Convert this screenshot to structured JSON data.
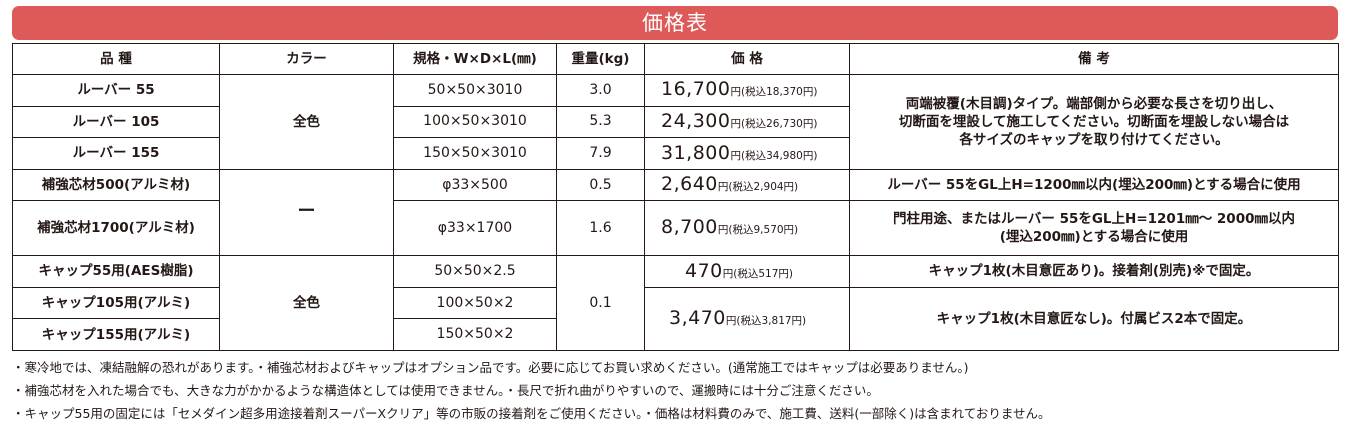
{
  "title": "価格表",
  "headers": {
    "name": "品 種",
    "color": "カラー",
    "spec": "規格・W×D×L(㎜)",
    "weight": "重量(kg)",
    "price": "価 格",
    "remarks": "備 考"
  },
  "price_unit": "円",
  "rows": [
    {
      "name": "ルーバー 55",
      "spec": "50×50×3010",
      "weight": "3.0",
      "price": "16,700",
      "tax": "(税込18,370円)"
    },
    {
      "name": "ルーバー 105",
      "spec": "100×50×3010",
      "weight": "5.3",
      "price": "24,300",
      "tax": "(税込26,730円)"
    },
    {
      "name": "ルーバー 155",
      "spec": "150×50×3010",
      "weight": "7.9",
      "price": "31,800",
      "tax": "(税込34,980円)"
    },
    {
      "name": "補強芯材500(アルミ材)",
      "spec": "φ33×500",
      "weight": "0.5",
      "price": "2,640",
      "tax": "(税込2,904円)"
    },
    {
      "name": "補強芯材1700(アルミ材)",
      "spec": "φ33×1700",
      "weight": "1.6",
      "price": "8,700",
      "tax": "(税込9,570円)"
    },
    {
      "name": "キャップ55用(AES樹脂)",
      "spec": "50×50×2.5",
      "price": "470",
      "tax": "(税込517円)"
    },
    {
      "name": "キャップ105用(アルミ)",
      "spec": "100×50×2",
      "price": "3,470",
      "tax": "(税込3,817円)"
    },
    {
      "name": "キャップ155用(アルミ)",
      "spec": "150×50×2"
    }
  ],
  "colors": {
    "group1": "全色",
    "group2": "ー",
    "group3": "全色"
  },
  "cap_weight": "0.1",
  "remarks": {
    "louver": [
      "両端被覆(木目調)タイプ。端部側から必要な長さを切り出し、",
      "切断面を埋設して施工してください。切断面を埋設しない場合は",
      "各サイズのキャップを取り付けてください。"
    ],
    "core500": "ルーバー 55をGL上H=1200㎜以内(埋込200㎜)とする場合に使用",
    "core1700": [
      "門柱用途、またはルーバー 55をGL上H=1201㎜～ 2000㎜以内",
      "(埋込200㎜)とする場合に使用"
    ],
    "cap55": "キャップ1枚(木目意匠あり)。接着剤(別売)※で固定。",
    "cap105_155": "キャップ1枚(木目意匠なし)。付属ビス2本で固定。"
  },
  "notes": [
    "・寒冷地では、凍結融解の恐れがあります。・補強芯材およびキャップはオプション品です。必要に応じてお買い求めください。(通常施工ではキャップは必要ありません。)",
    "・補強芯材を入れた場合でも、大きな力がかかるような構造体としては使用できません。・長尺で折れ曲がりやすいので、運搬時には十分ご注意ください。",
    "・キャップ55用の固定には「セメダイン超多用途接着剤スーパーXクリア」等の市販の接着剤をご使用ください。・価格は材料費のみで、施工費、送料(一部除く)は含まれておりません。"
  ]
}
